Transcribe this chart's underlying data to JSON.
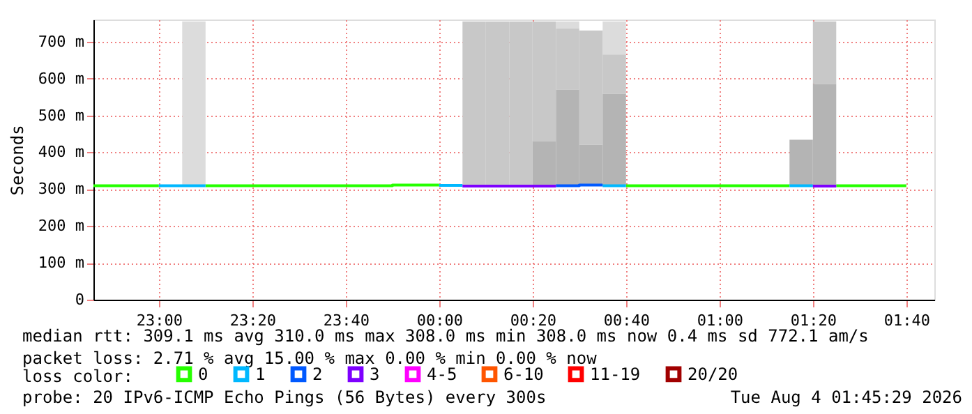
{
  "chart_data": {
    "type": "step",
    "ylabel": "Seconds",
    "legend_title": "loss color:",
    "legend": "bottom",
    "grid": true,
    "line_style": "solid",
    "xlim": [
      "2026-08-03T22:46",
      "2026-08-04T01:46"
    ],
    "xticks": [
      {
        "value": "2026-08-03T23:00",
        "label": "23:00"
      },
      {
        "value": "2026-08-03T23:20",
        "label": "23:20"
      },
      {
        "value": "2026-08-03T23:40",
        "label": "23:40"
      },
      {
        "value": "2026-08-04T00:00",
        "label": "00:00"
      },
      {
        "value": "2026-08-04T00:20",
        "label": "00:20"
      },
      {
        "value": "2026-08-04T00:40",
        "label": "00:40"
      },
      {
        "value": "2026-08-04T01:00",
        "label": "01:00"
      },
      {
        "value": "2026-08-04T01:20",
        "label": "01:20"
      },
      {
        "value": "2026-08-04T01:40",
        "label": "01:40"
      }
    ],
    "ylim": [
      0,
      760
    ],
    "yticks": [
      0,
      {
        "value": 100,
        "label": "100 m"
      },
      {
        "value": 200,
        "label": "200 m"
      },
      {
        "value": 300,
        "label": "300 m"
      },
      {
        "value": 400,
        "label": "400 m"
      },
      {
        "value": 500,
        "label": "500 m"
      },
      {
        "value": 600,
        "label": "600 m"
      },
      {
        "value": 700,
        "label": "700 m"
      }
    ],
    "series": [
      {
        "type": "bar",
        "color": "#dcdcdc",
        "x": [
          "2026-08-03T23:05",
          "2026-08-04T00:25",
          "2026-08-04T00:35"
        ],
        "base": [
          310,
          736,
          665
        ],
        "values": [
          445,
          19,
          90
        ]
      },
      {
        "type": "bar",
        "color": "#c8c8c8",
        "x": [
          "2026-08-04T00:05",
          "2026-08-04T00:10",
          "2026-08-04T00:15",
          "2026-08-04T00:20",
          "2026-08-04T00:25",
          "2026-08-04T00:30",
          "2026-08-04T00:35",
          "2026-08-04T01:20"
        ],
        "base": [
          310,
          310,
          310,
          430,
          570,
          420,
          558,
          585
        ],
        "values": [
          445,
          445,
          445,
          325,
          166,
          310,
          107,
          170
        ]
      },
      {
        "type": "bar",
        "color": "#b4b4b4",
        "x": [
          "2026-08-04T00:20",
          "2026-08-04T00:25",
          "2026-08-04T00:30",
          "2026-08-04T00:35",
          "2026-08-04T01:15",
          "2026-08-04T01:20"
        ],
        "base": [
          310,
          310,
          310,
          310,
          310,
          310
        ],
        "values": [
          120,
          260,
          110,
          248,
          124,
          275
        ]
      },
      {
        "name": "0",
        "color": "#26ff00",
        "x": [
          "2026-08-03T22:46",
          "2026-08-03T23:00",
          "2026-08-03T23:05",
          "2026-08-03T23:10",
          "2026-08-03T23:50",
          "2026-08-04T00:00",
          "2026-08-04T00:03",
          "2026-08-04T00:40",
          "2026-08-04T01:15",
          "2026-08-04T01:17",
          "2026-08-04T01:25",
          "2026-08-04T01:40"
        ],
        "values": [
          309,
          309,
          null,
          309,
          311,
          311,
          null,
          309,
          309,
          null,
          309,
          309
        ]
      },
      {
        "name": "1",
        "color": "#00b8ff",
        "x": [
          "2026-08-03T23:00",
          "2026-08-03T23:10",
          "2026-08-03T23:30",
          "2026-08-04T00:00",
          "2026-08-04T00:05",
          "2026-08-04T00:20",
          "2026-08-04T00:35",
          "2026-08-04T00:40",
          "2026-08-04T01:00",
          "2026-08-04T01:15",
          "2026-08-04T01:20"
        ],
        "values": [
          309,
          309,
          null,
          310,
          310,
          null,
          309,
          309,
          null,
          309,
          309
        ]
      },
      {
        "name": "2",
        "color": "#0059ff",
        "x": [
          "2026-08-04T00:25",
          "2026-08-04T00:30",
          "2026-08-04T00:35"
        ],
        "values": [
          309,
          311,
          311
        ]
      },
      {
        "name": "3",
        "color": "#7e00ff",
        "x": [
          "2026-08-04T00:05",
          "2026-08-04T00:25",
          "2026-08-04T00:50",
          "2026-08-04T01:20",
          "2026-08-04T01:25"
        ],
        "values": [
          308,
          308,
          null,
          308,
          308
        ]
      },
      {
        "name": "4-5",
        "color": "#ff00ff"
      },
      {
        "name": "6-10",
        "color": "#ff5500"
      },
      {
        "name": "11-19",
        "color": "#ff0000"
      },
      {
        "name": "20/20",
        "color": "#a10000"
      }
    ],
    "annotations": [
      "median rtt:  309.1 ms avg  310.0 ms max  308.0 ms min  308.0 ms now  0.4 ms sd  772.1   am/s",
      "packet loss: 2.71 % avg  15.00 % max  0.00 % min  0.00 % now",
      "probe:       20 IPv6-ICMP Echo Pings (56 Bytes) every 300s",
      "Tue Aug  4 01:45:29 2026"
    ]
  }
}
